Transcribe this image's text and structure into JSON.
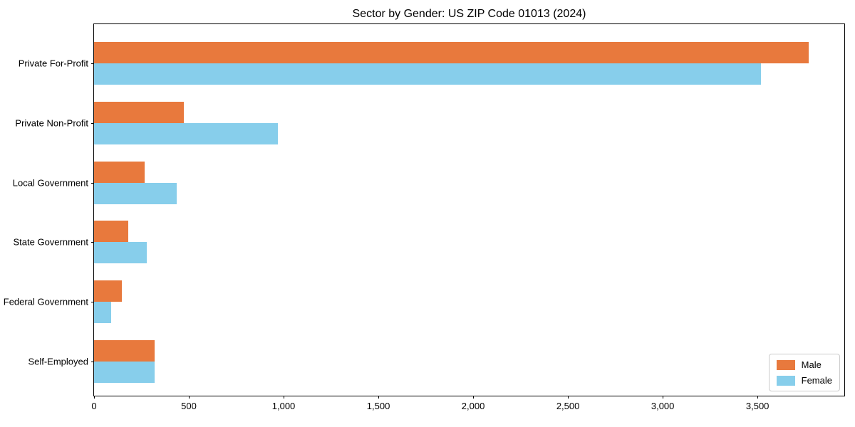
{
  "chart_data": {
    "type": "bar",
    "orientation": "horizontal",
    "title": "Sector by Gender: US ZIP Code 01013 (2024)",
    "categories": [
      "Private For-Profit",
      "Private Non-Profit",
      "Local Government",
      "State Government",
      "Federal Government",
      "Self-Employed"
    ],
    "series": [
      {
        "name": "Male",
        "color": "#e8793d",
        "values": [
          3770,
          475,
          265,
          180,
          145,
          320
        ]
      },
      {
        "name": "Female",
        "color": "#87ceeb",
        "values": [
          3520,
          970,
          435,
          280,
          90,
          320
        ]
      }
    ],
    "xlim": [
      0,
      3958
    ],
    "xticks": [
      0,
      500,
      1000,
      1500,
      2000,
      2500,
      3000,
      3500
    ],
    "xtick_labels": [
      "0",
      "500",
      "1,000",
      "1,500",
      "2,000",
      "2,500",
      "3,000",
      "3,500"
    ],
    "xlabel": "",
    "ylabel": "",
    "legend_position": "lower right",
    "grid": false,
    "background_color": "#ffffff",
    "text_color": "#000000"
  }
}
